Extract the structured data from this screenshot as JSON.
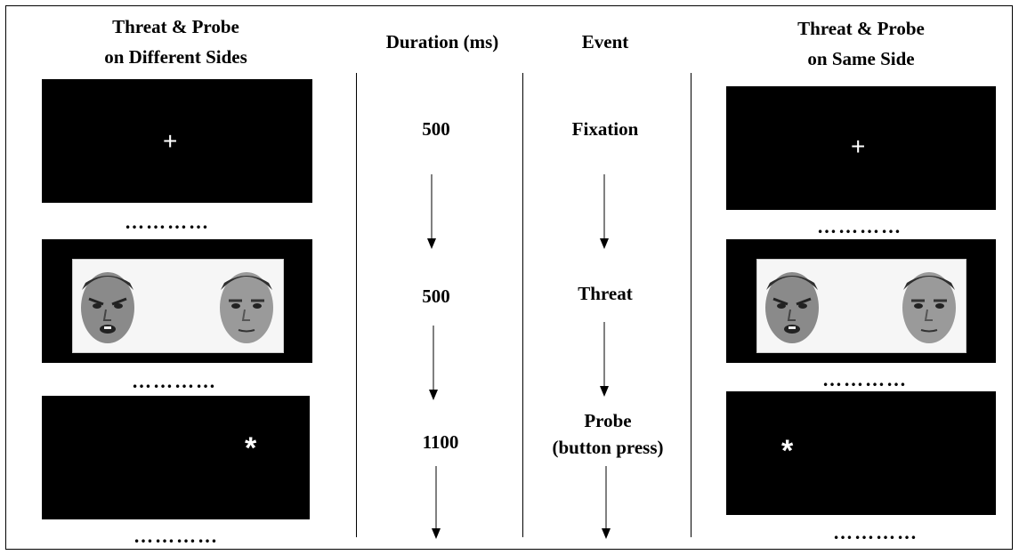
{
  "columns": {
    "left_header": [
      "Threat & Probe",
      "on Different Sides"
    ],
    "duration_header": "Duration (ms)",
    "event_header": "Event",
    "right_header": [
      "Threat & Probe",
      "on Same Side"
    ]
  },
  "durations": [
    "500",
    "500",
    "1100"
  ],
  "events": [
    "Fixation",
    "Threat",
    "Probe",
    "(button press)"
  ],
  "screens": {
    "fixation_symbol": "+",
    "probe_symbol": "*",
    "separator": "…………"
  },
  "colors": {
    "screen": "#000000",
    "symbol": "#ffffff",
    "face_panel": "#f6f6f6"
  },
  "icons": {
    "face": "face-photo-icon",
    "arrow": "down-arrow-icon"
  }
}
